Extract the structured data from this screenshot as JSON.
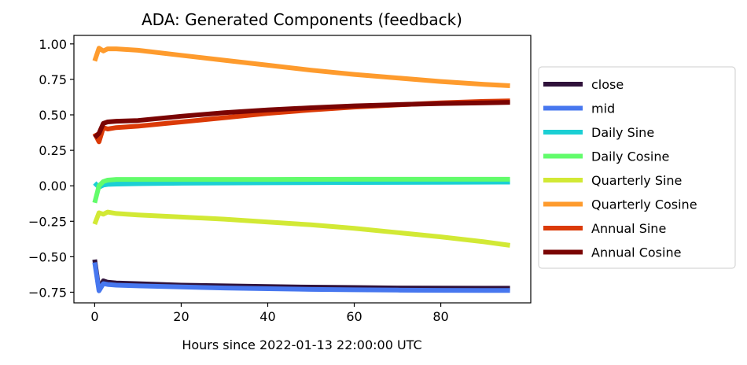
{
  "chart_data": {
    "type": "line",
    "title": "ADA: Generated Components (feedback)",
    "xlabel": "Hours since 2022-01-13 22:00:00 UTC",
    "ylabel": "",
    "xlim": [
      -4.8,
      100.8
    ],
    "ylim": [
      -0.825,
      1.06
    ],
    "xticks": [
      0,
      20,
      40,
      60,
      80
    ],
    "yticks": [
      -0.75,
      -0.5,
      -0.25,
      0.0,
      0.25,
      0.5,
      0.75,
      1.0
    ],
    "ytick_labels": [
      "−0.75",
      "−0.50",
      "−0.25",
      "0.00",
      "0.25",
      "0.50",
      "0.75",
      "1.00"
    ],
    "grid": false,
    "legend_position": "right-outside",
    "series": [
      {
        "name": "close",
        "color": "#30123b",
        "width": 6,
        "x": [
          0,
          1,
          2,
          3,
          5,
          10,
          20,
          30,
          40,
          50,
          60,
          70,
          80,
          90,
          96
        ],
        "y": [
          -0.52,
          -0.73,
          -0.67,
          -0.68,
          -0.685,
          -0.69,
          -0.7,
          -0.705,
          -0.71,
          -0.714,
          -0.717,
          -0.72,
          -0.721,
          -0.722,
          -0.722
        ]
      },
      {
        "name": "mid",
        "color": "#4777ef",
        "width": 6,
        "x": [
          0,
          1,
          2,
          3,
          5,
          10,
          20,
          30,
          40,
          50,
          60,
          70,
          80,
          90,
          96
        ],
        "y": [
          -0.54,
          -0.74,
          -0.69,
          -0.695,
          -0.7,
          -0.705,
          -0.713,
          -0.72,
          -0.725,
          -0.73,
          -0.733,
          -0.735,
          -0.737,
          -0.738,
          -0.738
        ]
      },
      {
        "name": "Daily Sine",
        "color": "#1bcfd4",
        "width": 6,
        "x": [
          0,
          1,
          2,
          3,
          5,
          10,
          20,
          40,
          60,
          80,
          96
        ],
        "y": [
          0.02,
          -0.01,
          0.005,
          0.01,
          0.012,
          0.015,
          0.018,
          0.021,
          0.023,
          0.025,
          0.026
        ]
      },
      {
        "name": "Daily Cosine",
        "color": "#62fc6b",
        "width": 6,
        "x": [
          0,
          1,
          2,
          3,
          5,
          10,
          20,
          40,
          60,
          80,
          96
        ],
        "y": [
          -0.12,
          0.0,
          0.03,
          0.04,
          0.045,
          0.045,
          0.045,
          0.045,
          0.046,
          0.046,
          0.046
        ]
      },
      {
        "name": "Quarterly Sine",
        "color": "#d2e935",
        "width": 6,
        "x": [
          0,
          1,
          2,
          3,
          5,
          10,
          20,
          30,
          40,
          50,
          60,
          70,
          80,
          90,
          96
        ],
        "y": [
          -0.27,
          -0.19,
          -0.2,
          -0.185,
          -0.195,
          -0.205,
          -0.22,
          -0.235,
          -0.255,
          -0.275,
          -0.3,
          -0.33,
          -0.36,
          -0.395,
          -0.42
        ]
      },
      {
        "name": "Quarterly Cosine",
        "color": "#fe9b2d",
        "width": 6,
        "x": [
          0,
          1,
          2,
          3,
          5,
          10,
          20,
          30,
          40,
          50,
          60,
          70,
          80,
          90,
          96
        ],
        "y": [
          0.88,
          0.97,
          0.95,
          0.965,
          0.965,
          0.955,
          0.92,
          0.885,
          0.85,
          0.815,
          0.785,
          0.76,
          0.735,
          0.715,
          0.705
        ]
      },
      {
        "name": "Annual Sine",
        "color": "#db3a07",
        "width": 6,
        "x": [
          0,
          1,
          2,
          3,
          5,
          10,
          20,
          30,
          40,
          50,
          60,
          70,
          80,
          90,
          96
        ],
        "y": [
          0.37,
          0.31,
          0.41,
          0.4,
          0.41,
          0.42,
          0.45,
          0.48,
          0.51,
          0.535,
          0.555,
          0.57,
          0.585,
          0.595,
          0.598
        ]
      },
      {
        "name": "Annual Cosine",
        "color": "#7a0403",
        "width": 6,
        "x": [
          0,
          1,
          2,
          3,
          5,
          10,
          20,
          30,
          40,
          50,
          60,
          70,
          80,
          90,
          96
        ],
        "y": [
          0.34,
          0.37,
          0.44,
          0.45,
          0.455,
          0.46,
          0.49,
          0.515,
          0.535,
          0.55,
          0.563,
          0.572,
          0.58,
          0.585,
          0.588
        ]
      }
    ]
  }
}
